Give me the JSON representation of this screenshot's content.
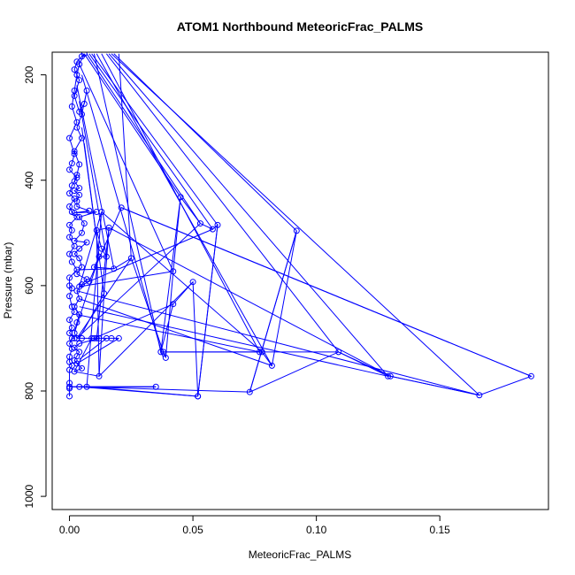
{
  "chart_data": {
    "type": "scatter",
    "title": "ATOM1 Northbound MeteoricFrac_PALMS",
    "xlabel": "MeteoricFrac_PALMS",
    "ylabel": "Pressure (mbar)",
    "xlim": [
      -0.007,
      0.194
    ],
    "ylim": [
      1025,
      157
    ],
    "y_inverted": true,
    "grid": false,
    "color": "#0000ff",
    "marker": "open-circle",
    "connected": true,
    "x_ticks": [
      {
        "value": 0,
        "label": "0.00"
      },
      {
        "value": 0.05,
        "label": "0.05"
      },
      {
        "value": 0.1,
        "label": "0.10"
      },
      {
        "value": 0.15,
        "label": "0.15"
      }
    ],
    "y_ticks": [
      {
        "value": 200,
        "label": "200"
      },
      {
        "value": 400,
        "label": "400"
      },
      {
        "value": 600,
        "label": "600"
      },
      {
        "value": 800,
        "label": "800"
      },
      {
        "value": 1000,
        "label": "1000"
      }
    ],
    "series": [
      {
        "points": [
          [
            0.0,
            810
          ],
          [
            0.0,
            795
          ],
          [
            0.0,
            785
          ],
          [
            0.0,
            760
          ],
          [
            0.001,
            752
          ],
          [
            0.0,
            745
          ],
          [
            0.0,
            735
          ],
          [
            0.001,
            720
          ],
          [
            0.0,
            710
          ],
          [
            0.001,
            700
          ],
          [
            0.002,
            700
          ],
          [
            0.0,
            690
          ],
          [
            0.001,
            680
          ],
          [
            0.0,
            665
          ],
          [
            0.002,
            650
          ],
          [
            0.001,
            640
          ],
          [
            0.0,
            620
          ],
          [
            0.001,
            605
          ],
          [
            0.0,
            600
          ],
          [
            0.0,
            585
          ],
          [
            0.003,
            570
          ],
          [
            0.001,
            555
          ],
          [
            0.0,
            540
          ],
          [
            0.002,
            525
          ],
          [
            0.0,
            508
          ],
          [
            0.001,
            495
          ],
          [
            0.0,
            485
          ],
          [
            0.003,
            470
          ],
          [
            0.001,
            460
          ],
          [
            0.0,
            450
          ],
          [
            0.002,
            435
          ],
          [
            0.0,
            425
          ],
          [
            0.001,
            410
          ],
          [
            0.003,
            395
          ],
          [
            0.0,
            380
          ],
          [
            0.001,
            368
          ],
          [
            0.002,
            350
          ],
          [
            0.0,
            320
          ],
          [
            0.003,
            290
          ],
          [
            0.001,
            260
          ],
          [
            0.002,
            230
          ],
          [
            0.003,
            200
          ],
          [
            0.004,
            180
          ],
          [
            0.006,
            160
          ],
          [
            0.005,
            165
          ],
          [
            0.003,
            175
          ],
          [
            0.002,
            190
          ],
          [
            0.004,
            210
          ],
          [
            0.002,
            240
          ],
          [
            0.004,
            270
          ],
          [
            0.006,
            255
          ],
          [
            0.007,
            230
          ],
          [
            0.005,
            275
          ],
          [
            0.003,
            300
          ],
          [
            0.005,
            320
          ],
          [
            0.002,
            345
          ],
          [
            0.004,
            370
          ],
          [
            0.003,
            390
          ],
          [
            0.002,
            402
          ],
          [
            0.004,
            415
          ],
          [
            0.002,
            420
          ],
          [
            0.004,
            428
          ],
          [
            0.003,
            440
          ],
          [
            0.003,
            450
          ],
          [
            0.008,
            458
          ],
          [
            0.002,
            462
          ],
          [
            0.011,
            460
          ],
          [
            0.004,
            470
          ],
          [
            0.006,
            482
          ],
          [
            0.005,
            500
          ],
          [
            0.002,
            515
          ],
          [
            0.007,
            518
          ],
          [
            0.004,
            530
          ],
          [
            0.002,
            540
          ],
          [
            0.004,
            548
          ],
          [
            0.005,
            565
          ],
          [
            0.003,
            578
          ],
          [
            0.007,
            588
          ],
          [
            0.005,
            598
          ],
          [
            0.003,
            610
          ],
          [
            0.004,
            625
          ],
          [
            0.002,
            640
          ],
          [
            0.004,
            655
          ],
          [
            0.003,
            670
          ],
          [
            0.002,
            690
          ],
          [
            0.003,
            700
          ],
          [
            0.005,
            700
          ],
          [
            0.009,
            700
          ],
          [
            0.01,
            700
          ],
          [
            0.011,
            700
          ],
          [
            0.015,
            700
          ],
          [
            0.017,
            700
          ],
          [
            0.02,
            700
          ],
          [
            0.012,
            700
          ],
          [
            0.004,
            710
          ],
          [
            0.002,
            718
          ],
          [
            0.004,
            726
          ],
          [
            0.003,
            734
          ],
          [
            0.002,
            742
          ],
          [
            0.003,
            748
          ],
          [
            0.005,
            757
          ],
          [
            0.002,
            763
          ],
          [
            0.012,
            772
          ],
          [
            0.014,
            615
          ],
          [
            0.016,
            490
          ],
          [
            0.011,
            495
          ],
          [
            0.013,
            530
          ],
          [
            0.015,
            545
          ],
          [
            0.012,
            545
          ],
          [
            0.01,
            565
          ],
          [
            0.018,
            568
          ],
          [
            0.025,
            548
          ],
          [
            0.038,
            726
          ],
          [
            0.039,
            737
          ],
          [
            0.042,
            573
          ],
          [
            0.045,
            432
          ],
          [
            0.053,
            482
          ],
          [
            0.058,
            493
          ],
          [
            0.06,
            485
          ],
          [
            0.052,
            810
          ],
          [
            0.05,
            593
          ],
          [
            0.042,
            635
          ],
          [
            0.037,
            726
          ],
          [
            0.077,
            726
          ],
          [
            0.078,
            726
          ],
          [
            0.082,
            752
          ],
          [
            0.092,
            496
          ],
          [
            0.073,
            802
          ],
          [
            0.109,
            726
          ],
          [
            0.129,
            772
          ],
          [
            0.13,
            772
          ],
          [
            0.166,
            808
          ],
          [
            0.187,
            772
          ],
          [
            0.021,
            452
          ],
          [
            0.008,
            592
          ],
          [
            0.004,
            602
          ],
          [
            0.013,
            460
          ],
          [
            0.007,
            792
          ],
          [
            0.0,
            792
          ],
          [
            0.035,
            792
          ],
          [
            0.004,
            792
          ],
          [
            0.052,
            810
          ]
        ]
      }
    ],
    "segments": [
      [
        [
          0.006,
          160
        ],
        [
          0.045,
          432
        ]
      ],
      [
        [
          0.007,
          160
        ],
        [
          0.053,
          482
        ]
      ],
      [
        [
          0.008,
          160
        ],
        [
          0.058,
          493
        ]
      ],
      [
        [
          0.009,
          160
        ],
        [
          0.06,
          485
        ]
      ],
      [
        [
          0.01,
          160
        ],
        [
          0.037,
          726
        ]
      ],
      [
        [
          0.011,
          160
        ],
        [
          0.082,
          752
        ]
      ],
      [
        [
          0.013,
          160
        ],
        [
          0.077,
          726
        ]
      ],
      [
        [
          0.015,
          160
        ],
        [
          0.109,
          726
        ]
      ],
      [
        [
          0.016,
          160
        ],
        [
          0.129,
          772
        ]
      ],
      [
        [
          0.017,
          160
        ],
        [
          0.166,
          808
        ]
      ],
      [
        [
          0.018,
          160
        ],
        [
          0.092,
          496
        ]
      ],
      [
        [
          0.02,
          160
        ],
        [
          0.025,
          548
        ]
      ],
      [
        [
          0.004,
          180
        ],
        [
          0.042,
          573
        ]
      ],
      [
        [
          0.005,
          200
        ],
        [
          0.038,
          737
        ]
      ],
      [
        [
          0.003,
          220
        ],
        [
          0.018,
          568
        ]
      ],
      [
        [
          0.004,
          250
        ],
        [
          0.015,
          545
        ]
      ],
      [
        [
          0.005,
          300
        ],
        [
          0.014,
          615
        ]
      ],
      [
        [
          0.006,
          330
        ],
        [
          0.012,
          545
        ]
      ],
      [
        [
          0.021,
          452
        ],
        [
          0.187,
          772
        ]
      ],
      [
        [
          0.016,
          490
        ],
        [
          0.13,
          772
        ]
      ],
      [
        [
          0.013,
          460
        ],
        [
          0.078,
          726
        ]
      ],
      [
        [
          0.092,
          496
        ],
        [
          0.073,
          802
        ]
      ],
      [
        [
          0.073,
          802
        ],
        [
          0.004,
          792
        ]
      ],
      [
        [
          0.004,
          792
        ],
        [
          0.035,
          792
        ]
      ],
      [
        [
          0.035,
          792
        ],
        [
          0.0,
          792
        ]
      ],
      [
        [
          0.0,
          792
        ],
        [
          0.007,
          792
        ]
      ],
      [
        [
          0.007,
          792
        ],
        [
          0.052,
          810
        ]
      ],
      [
        [
          0.052,
          810
        ],
        [
          0.06,
          485
        ]
      ],
      [
        [
          0.045,
          432
        ],
        [
          0.037,
          726
        ]
      ],
      [
        [
          0.037,
          726
        ],
        [
          0.109,
          726
        ]
      ],
      [
        [
          0.109,
          726
        ],
        [
          0.13,
          772
        ]
      ],
      [
        [
          0.13,
          772
        ],
        [
          0.166,
          808
        ]
      ],
      [
        [
          0.166,
          808
        ],
        [
          0.003,
          610
        ]
      ],
      [
        [
          0.053,
          482
        ],
        [
          0.003,
          700
        ]
      ],
      [
        [
          0.058,
          493
        ],
        [
          0.008,
          592
        ]
      ],
      [
        [
          0.042,
          573
        ],
        [
          0.004,
          602
        ]
      ],
      [
        [
          0.025,
          548
        ],
        [
          0.003,
          700
        ]
      ],
      [
        [
          0.082,
          752
        ],
        [
          0.004,
          625
        ]
      ],
      [
        [
          0.077,
          726
        ],
        [
          0.003,
          655
        ]
      ],
      [
        [
          0.05,
          593
        ],
        [
          0.012,
          772
        ]
      ],
      [
        [
          0.042,
          635
        ],
        [
          0.01,
          700
        ]
      ],
      [
        [
          0.012,
          772
        ],
        [
          0.011,
          495
        ]
      ],
      [
        [
          0.011,
          700
        ],
        [
          0.016,
          490
        ]
      ],
      [
        [
          0.014,
          615
        ],
        [
          0.004,
          700
        ]
      ],
      [
        [
          0.015,
          700
        ],
        [
          0.004,
          740
        ]
      ],
      [
        [
          0.02,
          700
        ],
        [
          0.003,
          748
        ]
      ],
      [
        [
          0.009,
          700
        ],
        [
          0.002,
          763
        ]
      ],
      [
        [
          0.129,
          772
        ],
        [
          0.004,
          640
        ]
      ],
      [
        [
          0.018,
          568
        ],
        [
          0.003,
          570
        ]
      ],
      [
        [
          0.012,
          545
        ],
        [
          0.002,
          690
        ]
      ]
    ]
  }
}
